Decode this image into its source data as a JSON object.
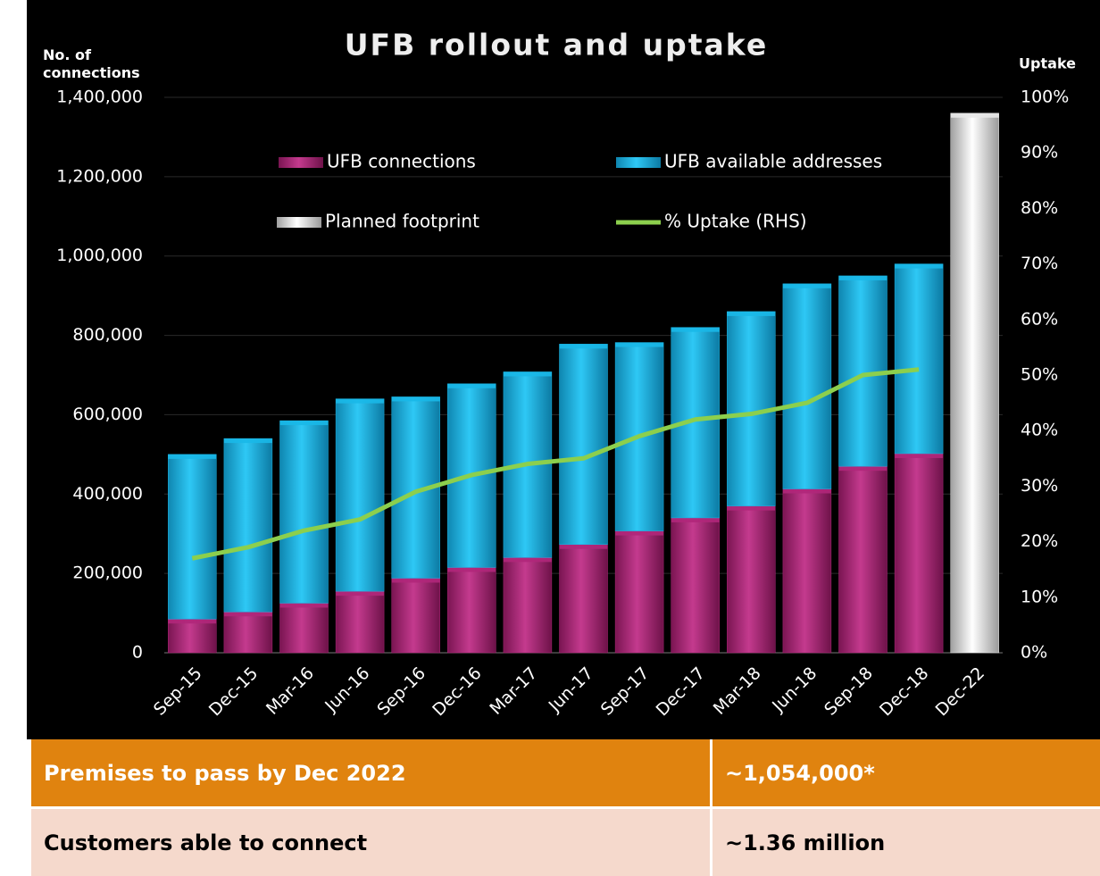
{
  "chart_data": {
    "type": "bar",
    "stacked": true,
    "title": "UFB rollout and uptake",
    "y_label": "No. of connections",
    "y2_label": "Uptake",
    "categories": [
      "Sep-15",
      "Dec-15",
      "Mar-16",
      "Jun-16",
      "Sep-16",
      "Dec-16",
      "Mar-17",
      "Jun-17",
      "Sep-17",
      "Dec-17",
      "Mar-18",
      "Jun-18",
      "Sep-18",
      "Dec-18",
      "Dec-22"
    ],
    "series": [
      {
        "name": "UFB connections",
        "type": "bar",
        "color": "#b0277a",
        "values": [
          85000,
          103000,
          125000,
          155000,
          188000,
          215000,
          240000,
          273000,
          307000,
          340000,
          370000,
          413000,
          470000,
          502000,
          null
        ]
      },
      {
        "name": "UFB available addresses",
        "type": "bar",
        "color": "#1ab8e8",
        "values": [
          415000,
          437000,
          460000,
          485000,
          457000,
          463000,
          468000,
          505000,
          475000,
          480000,
          490000,
          517000,
          480000,
          478000,
          null
        ]
      },
      {
        "name": "Planned footprint",
        "type": "bar",
        "color": "#e8e8e8",
        "values": [
          null,
          null,
          null,
          null,
          null,
          null,
          null,
          null,
          null,
          null,
          null,
          null,
          null,
          null,
          1360000
        ]
      },
      {
        "name": "% Uptake (RHS)",
        "type": "line",
        "axis": "y2",
        "color": "#8ccf4d",
        "values": [
          17,
          19,
          22,
          24,
          29,
          32,
          34,
          35,
          39,
          42,
          43,
          45,
          50,
          51,
          null
        ]
      }
    ],
    "ylim": [
      0,
      1400000
    ],
    "yticks": [
      0,
      {
        "value": 200000,
        "label": "200,000"
      },
      {
        "value": 400000,
        "label": "400,000"
      },
      {
        "value": 600000,
        "label": "600,000"
      },
      {
        "value": 800000,
        "label": "800,000"
      },
      {
        "value": 1000000,
        "label": "1,000,000"
      },
      {
        "value": 1200000,
        "label": "1,200,000"
      },
      {
        "value": 1400000,
        "label": "1,400,000"
      }
    ],
    "y2lim": [
      0,
      100
    ],
    "y2ticks": [
      {
        "value": 0,
        "label": "0%"
      },
      {
        "value": 10,
        "label": "10%"
      },
      {
        "value": 20,
        "label": "20%"
      },
      {
        "value": 30,
        "label": "30%"
      },
      {
        "value": 40,
        "label": "40%"
      },
      {
        "value": 50,
        "label": "50%"
      },
      {
        "value": 60,
        "label": "60%"
      },
      {
        "value": 70,
        "label": "70%"
      },
      {
        "value": 80,
        "label": "80%"
      },
      {
        "value": 90,
        "label": "90%"
      },
      {
        "value": 100,
        "label": "100%"
      }
    ],
    "grid": true
  },
  "table": {
    "rows": [
      [
        "Premises to pass by Dec 2022",
        "~1,054,000*"
      ],
      [
        "Customers able to connect",
        "~1.36 million"
      ]
    ]
  }
}
